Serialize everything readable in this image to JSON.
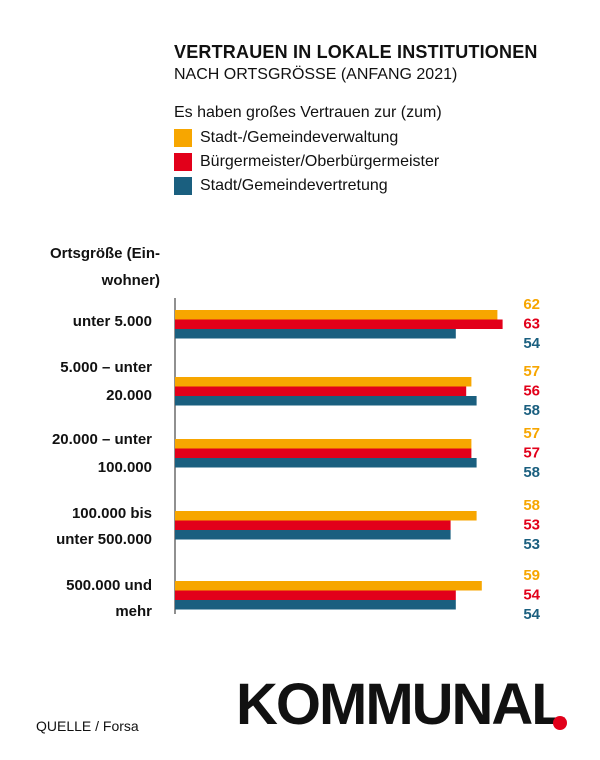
{
  "chart_data": {
    "type": "bar",
    "orientation": "horizontal",
    "title": "VERTRAUEN IN LOKALE INSTITUTIONEN",
    "subtitle": "NACH ORTSGRÖSSE (ANFANG 2021)",
    "legend_title": "Es haben großes Vertrauen zur (zum)",
    "ylabel": "Ortsgröße (Einwohner)",
    "ylabel_lines": [
      "Ortsgröße (Ein-",
      "wohner)"
    ],
    "categories": [
      "unter 5.000",
      "5.000 – unter 20.000",
      "20.000 – unter 100.000",
      "100.000 bis unter 500.000",
      "500.000 und mehr"
    ],
    "category_lines": [
      [
        "unter 5.000"
      ],
      [
        "5.000 – unter",
        "20.000"
      ],
      [
        "20.000 – unter",
        "100.000"
      ],
      [
        "100.000 bis",
        "unter 500.000"
      ],
      [
        "500.000 und",
        "mehr"
      ]
    ],
    "xlim": [
      0,
      63
    ],
    "grid": false,
    "legend_position": "top",
    "series": [
      {
        "name": "Stadt-/Gemeindeverwaltung",
        "color": "#f7a600",
        "values": [
          62,
          57,
          57,
          58,
          59
        ]
      },
      {
        "name": "Bürgermeister/Oberbürgermeister",
        "color": "#e2001a",
        "values": [
          63,
          56,
          57,
          53,
          54
        ]
      },
      {
        "name": "Stadt/Gemeindevertretung",
        "color": "#1a5f7f",
        "values": [
          54,
          58,
          58,
          53,
          54
        ]
      }
    ]
  },
  "footer": {
    "source": "QUELLE / Forsa",
    "logo": "KOMMUNAL"
  }
}
